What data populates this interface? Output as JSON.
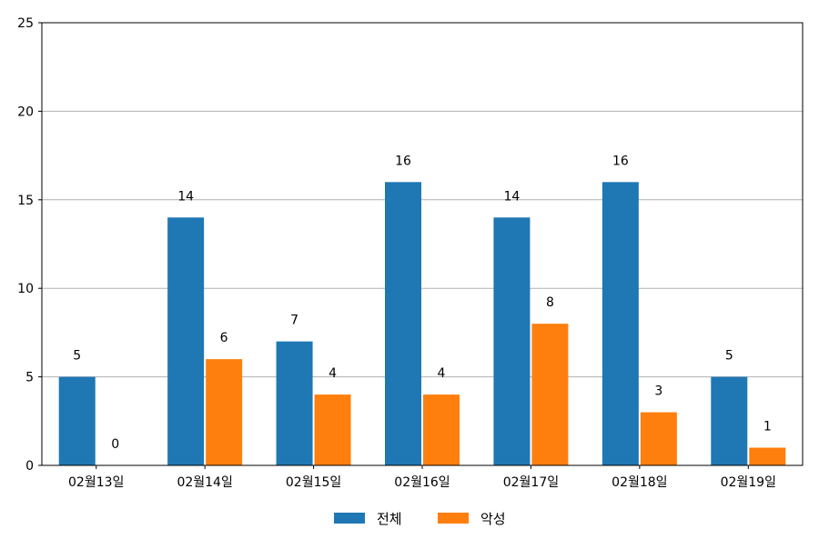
{
  "chart_data": {
    "type": "bar",
    "categories": [
      "02월13일",
      "02월14일",
      "02월15일",
      "02월16일",
      "02월17일",
      "02월18일",
      "02월19일"
    ],
    "series": [
      {
        "name": "전체",
        "values": [
          5,
          14,
          7,
          16,
          14,
          16,
          5
        ],
        "color": "#1f77b4"
      },
      {
        "name": "악성",
        "values": [
          0,
          6,
          4,
          4,
          8,
          3,
          1
        ],
        "color": "#ff7f0e"
      }
    ],
    "yticks": [
      "0",
      "5",
      "10",
      "15",
      "20",
      "25"
    ],
    "ylim": [
      0,
      25
    ],
    "grid": "horizontal",
    "legend_position": "bottom-center"
  }
}
